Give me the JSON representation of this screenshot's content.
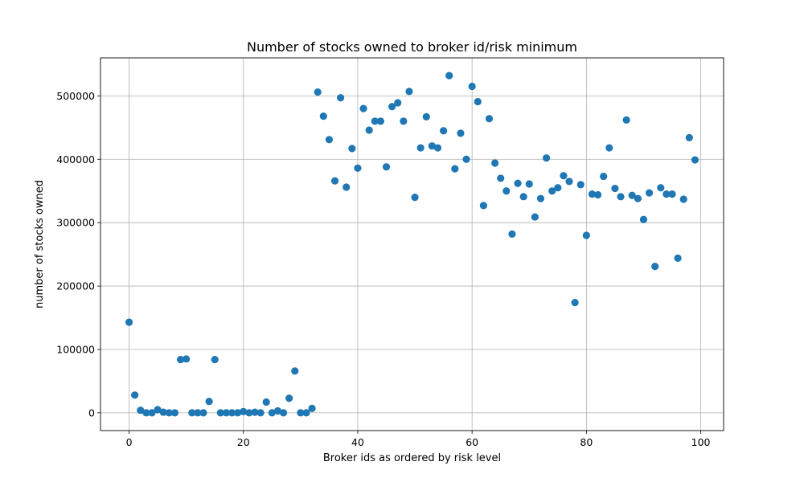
{
  "chart_data": {
    "type": "scatter",
    "title": "Number of stocks owned to broker id/risk minimum",
    "xlabel": "Broker ids as ordered by risk level",
    "ylabel": "number of stocks owned",
    "xlim": [
      -5,
      104
    ],
    "ylim": [
      -28000,
      560000
    ],
    "xticks": [
      0,
      20,
      40,
      60,
      80,
      100
    ],
    "yticks": [
      0,
      100000,
      200000,
      300000,
      400000,
      500000
    ],
    "grid": true,
    "marker_color": "#1f77b4",
    "series": [
      {
        "x": [
          0,
          1,
          2,
          3,
          4,
          5,
          6,
          7,
          8,
          9,
          10,
          11,
          12,
          13,
          14,
          15,
          16,
          17,
          18,
          19,
          20,
          21,
          22,
          23,
          24,
          25,
          26,
          27,
          28,
          29,
          30,
          31,
          32,
          33,
          34,
          35,
          36,
          37,
          38,
          39,
          40,
          41,
          42,
          43,
          44,
          45,
          46,
          47,
          48,
          49,
          50,
          51,
          52,
          53,
          54,
          55,
          56,
          57,
          58,
          59,
          60,
          61,
          62,
          63,
          64,
          65,
          66,
          67,
          68,
          69,
          70,
          71,
          72,
          73,
          74,
          75,
          76,
          77,
          78,
          79,
          80,
          81,
          82,
          83,
          84,
          85,
          86,
          87,
          88,
          89,
          90,
          91,
          92,
          93,
          94,
          95,
          96,
          97,
          98,
          99
        ],
        "y": [
          143000,
          28000,
          4000,
          0,
          0,
          5000,
          1000,
          0,
          0,
          84000,
          85000,
          0,
          0,
          0,
          18000,
          84000,
          0,
          0,
          0,
          0,
          2000,
          0,
          1000,
          0,
          17000,
          0,
          3000,
          0,
          23000,
          66000,
          0,
          0,
          7000,
          506000,
          468000,
          431000,
          366000,
          497000,
          356000,
          417000,
          386000,
          480000,
          446000,
          460000,
          460000,
          388000,
          483000,
          489000,
          460000,
          507000,
          340000,
          418000,
          467000,
          421000,
          418000,
          445000,
          532000,
          385000,
          441000,
          400000,
          515000,
          491000,
          327000,
          464000,
          394000,
          370000,
          350000,
          282000,
          362000,
          341000,
          361000,
          309000,
          338000,
          402000,
          350000,
          355000,
          374000,
          365000,
          174000,
          360000,
          280000,
          345000,
          344000,
          373000,
          418000,
          354000,
          341000,
          462000,
          343000,
          338000,
          305000,
          347000,
          231000,
          355000,
          345000,
          345000,
          244000,
          337000,
          434000,
          399000
        ]
      }
    ]
  }
}
